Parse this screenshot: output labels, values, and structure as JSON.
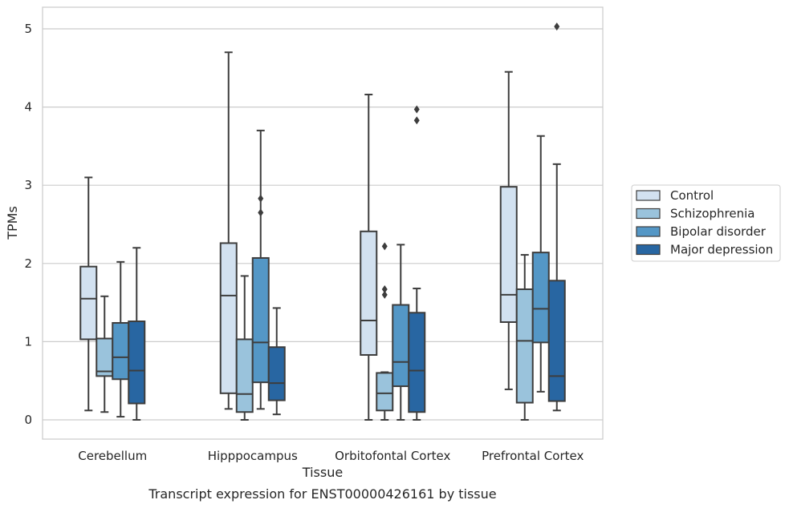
{
  "chart_data": {
    "type": "boxplot",
    "title": "",
    "caption": "Transcript expression for ENST00000426161 by tissue",
    "xlabel": "Tissue",
    "ylabel": "TPMs",
    "ylim": [
      -0.25,
      5.28
    ],
    "yticks": [
      0,
      1,
      2,
      3,
      4,
      5
    ],
    "grid": "horizontal",
    "legend_position": "right",
    "categories": [
      "Cerebellum",
      "Hipppocampus",
      "Orbitofontal Cortex",
      "Prefrontal Cortex"
    ],
    "series": [
      {
        "name": "Control",
        "color": "#d2e1f0",
        "boxes": [
          {
            "whislo": 0.12,
            "q1": 1.03,
            "med": 1.55,
            "q3": 1.96,
            "whishi": 3.1,
            "fliers": []
          },
          {
            "whislo": 0.14,
            "q1": 0.34,
            "med": 1.59,
            "q3": 2.26,
            "whishi": 4.7,
            "fliers": []
          },
          {
            "whislo": 0.0,
            "q1": 0.83,
            "med": 1.27,
            "q3": 2.41,
            "whishi": 4.16,
            "fliers": []
          },
          {
            "whislo": 0.39,
            "q1": 1.25,
            "med": 1.6,
            "q3": 2.98,
            "whishi": 4.45,
            "fliers": []
          }
        ]
      },
      {
        "name": "Schizophrenia",
        "color": "#9ac3dc",
        "boxes": [
          {
            "whislo": 0.1,
            "q1": 0.56,
            "med": 0.62,
            "q3": 1.04,
            "whishi": 1.58,
            "fliers": []
          },
          {
            "whislo": 0.0,
            "q1": 0.1,
            "med": 0.33,
            "q3": 1.03,
            "whishi": 1.84,
            "fliers": []
          },
          {
            "whislo": 0.0,
            "q1": 0.12,
            "med": 0.34,
            "q3": 0.6,
            "whishi": 0.61,
            "fliers": [
              1.6,
              1.67,
              2.22
            ]
          },
          {
            "whislo": 0.0,
            "q1": 0.22,
            "med": 1.01,
            "q3": 1.67,
            "whishi": 2.11,
            "fliers": []
          }
        ]
      },
      {
        "name": "Bipolar disorder",
        "color": "#5497c6",
        "boxes": [
          {
            "whislo": 0.04,
            "q1": 0.52,
            "med": 0.8,
            "q3": 1.24,
            "whishi": 2.02,
            "fliers": []
          },
          {
            "whislo": 0.14,
            "q1": 0.48,
            "med": 0.99,
            "q3": 2.07,
            "whishi": 3.7,
            "fliers": [
              2.65,
              2.83
            ]
          },
          {
            "whislo": 0.0,
            "q1": 0.43,
            "med": 0.74,
            "q3": 1.47,
            "whishi": 2.24,
            "fliers": []
          },
          {
            "whislo": 0.36,
            "q1": 0.99,
            "med": 1.42,
            "q3": 2.14,
            "whishi": 3.63,
            "fliers": []
          }
        ]
      },
      {
        "name": "Major depression",
        "color": "#2866a2",
        "boxes": [
          {
            "whislo": 0.0,
            "q1": 0.21,
            "med": 0.63,
            "q3": 1.26,
            "whishi": 2.2,
            "fliers": []
          },
          {
            "whislo": 0.07,
            "q1": 0.25,
            "med": 0.47,
            "q3": 0.93,
            "whishi": 1.43,
            "fliers": []
          },
          {
            "whislo": 0.0,
            "q1": 0.1,
            "med": 0.63,
            "q3": 1.37,
            "whishi": 1.68,
            "fliers": [
              3.83,
              3.97
            ]
          },
          {
            "whislo": 0.12,
            "q1": 0.24,
            "med": 0.56,
            "q3": 1.78,
            "whishi": 3.27,
            "fliers": [
              5.03
            ]
          }
        ]
      }
    ]
  }
}
